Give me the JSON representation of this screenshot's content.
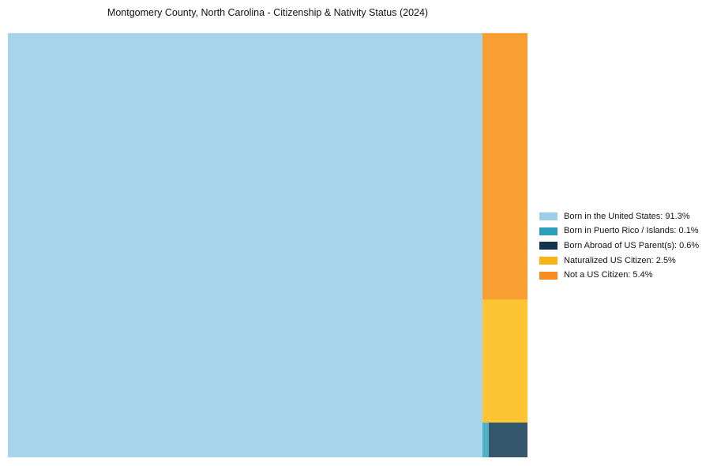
{
  "title": "Montgomery County, North Carolina - Citizenship & Nativity Status (2024)",
  "background_color": "#ffffff",
  "text_color": "#111111",
  "chart_data": {
    "type": "treemap",
    "title": "Montgomery County, North Carolina - Citizenship & Nativity Status (2024)",
    "unit": "%",
    "legend_position": "right",
    "grid": false,
    "items": [
      {
        "label": "Born in the United States",
        "value": 91.3,
        "display": "Born in the United States: 91.3%",
        "block_color": "#A6D4EA",
        "legend_color": "#9CCEE7"
      },
      {
        "label": "Born in Puerto Rico / Islands",
        "value": 0.1,
        "display": "Born in Puerto Rico / Islands: 0.1%",
        "block_color": "#4FB0C6",
        "legend_color": "#2E9FBA"
      },
      {
        "label": "Born Abroad of US Parent(s)",
        "value": 0.6,
        "display": "Born Abroad of US Parent(s): 0.6%",
        "block_color": "#35576D",
        "legend_color": "#12344E"
      },
      {
        "label": "Naturalized US Citizen",
        "value": 2.5,
        "display": "Naturalized US Citizen: 2.5%",
        "block_color": "#FDC433",
        "legend_color": "#FCB316"
      },
      {
        "label": "Not a US Citizen",
        "value": 5.4,
        "display": "Not a US Citizen: 5.4%",
        "block_color": "#F99E31",
        "legend_color": "#F78D1E"
      }
    ]
  }
}
